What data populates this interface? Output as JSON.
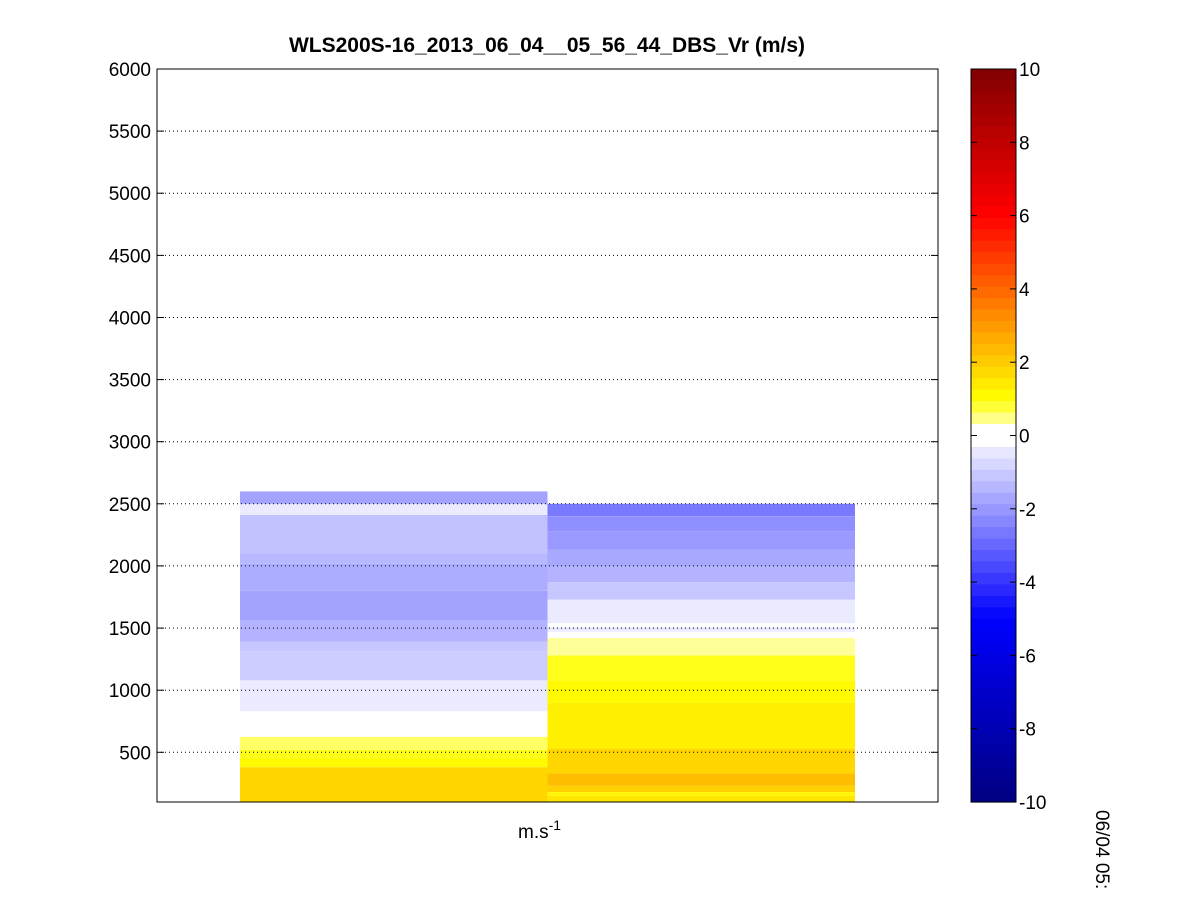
{
  "chart_data": {
    "type": "heatmap",
    "title": "WLS200S-16_2013_06_04__05_56_44_DBS_Vr (m/s)",
    "xlabel": "m.s",
    "xlabel_superscript": "-1",
    "ylabel": "",
    "ylim": [
      100,
      6000
    ],
    "yticks": [
      500,
      1000,
      1500,
      2000,
      2500,
      3000,
      3500,
      4000,
      4500,
      5000,
      5500,
      6000
    ],
    "grid": true,
    "columns": [
      {
        "cells": [
          {
            "z0": 100,
            "z1": 380,
            "v": 1.8
          },
          {
            "z0": 380,
            "z1": 460,
            "v": 1.1
          },
          {
            "z0": 460,
            "z1": 520,
            "v": 0.9
          },
          {
            "z0": 520,
            "z1": 625,
            "v": 0.6
          },
          {
            "z0": 625,
            "z1": 830,
            "v": 0.0
          },
          {
            "z0": 830,
            "z1": 1080,
            "v": -0.4
          },
          {
            "z0": 1080,
            "z1": 1310,
            "v": -1.0
          },
          {
            "z0": 1310,
            "z1": 1390,
            "v": -1.1
          },
          {
            "z0": 1390,
            "z1": 1560,
            "v": -1.5
          },
          {
            "z0": 1560,
            "z1": 1800,
            "v": -1.8
          },
          {
            "z0": 1800,
            "z1": 2020,
            "v": -1.6
          },
          {
            "z0": 2020,
            "z1": 2100,
            "v": -1.4
          },
          {
            "z0": 2100,
            "z1": 2410,
            "v": -1.2
          },
          {
            "z0": 2410,
            "z1": 2500,
            "v": -0.4
          },
          {
            "z0": 2500,
            "z1": 2600,
            "v": -1.8
          }
        ]
      },
      {
        "cells": [
          {
            "z0": 100,
            "z1": 150,
            "v": 1.5
          },
          {
            "z0": 150,
            "z1": 180,
            "v": 1.2
          },
          {
            "z0": 180,
            "z1": 230,
            "v": 1.9
          },
          {
            "z0": 230,
            "z1": 330,
            "v": 2.3
          },
          {
            "z0": 330,
            "z1": 530,
            "v": 1.8
          },
          {
            "z0": 530,
            "z1": 900,
            "v": 1.3
          },
          {
            "z0": 900,
            "z1": 1080,
            "v": 1.1
          },
          {
            "z0": 1080,
            "z1": 1280,
            "v": 0.9
          },
          {
            "z0": 1280,
            "z1": 1420,
            "v": 0.4
          },
          {
            "z0": 1420,
            "z1": 1470,
            "v": 0.0
          },
          {
            "z0": 1470,
            "z1": 1510,
            "v": -0.4
          },
          {
            "z0": 1510,
            "z1": 1540,
            "v": 0.0
          },
          {
            "z0": 1540,
            "z1": 1730,
            "v": -0.4
          },
          {
            "z0": 1730,
            "z1": 1870,
            "v": -1.1
          },
          {
            "z0": 1870,
            "z1": 2000,
            "v": -1.5
          },
          {
            "z0": 2000,
            "z1": 2130,
            "v": -1.7
          },
          {
            "z0": 2130,
            "z1": 2280,
            "v": -2.0
          },
          {
            "z0": 2280,
            "z1": 2400,
            "v": -2.2
          },
          {
            "z0": 2400,
            "z1": 2500,
            "v": -2.6
          }
        ]
      }
    ],
    "colorbar": {
      "range": [
        -10,
        10
      ],
      "ticks": [
        10,
        8,
        6,
        4,
        2,
        0,
        -2,
        -4,
        -6,
        -8,
        -10
      ],
      "placement": "right"
    },
    "side_label": "06/04 05:"
  }
}
